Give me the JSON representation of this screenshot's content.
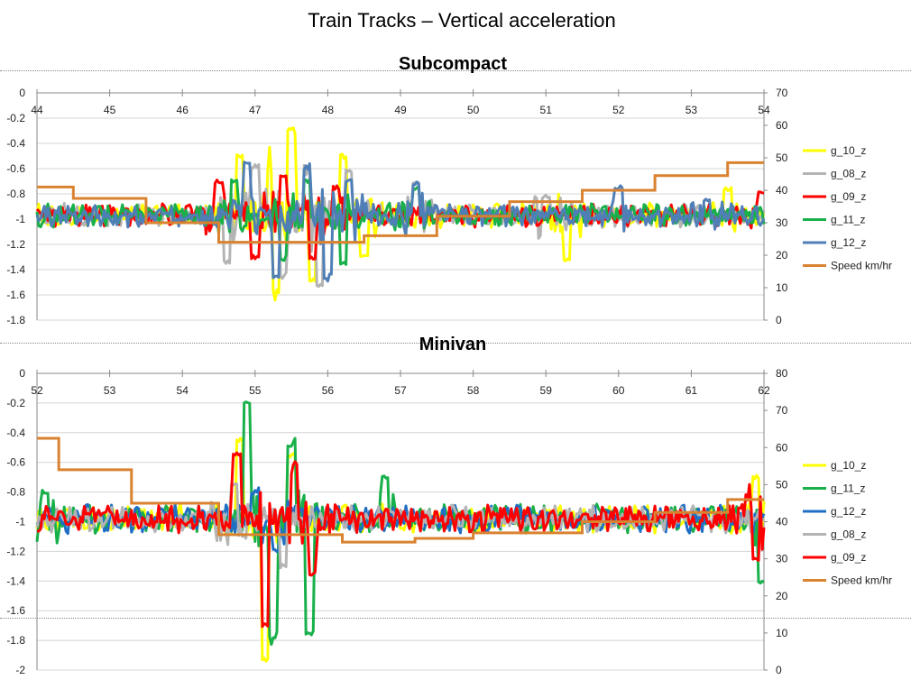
{
  "title": "Train Tracks – Vertical acceleration",
  "colors": {
    "yellow": "#ffff00",
    "gray": "#b4b4b4",
    "red": "#ff0000",
    "green": "#18b04a",
    "blue": "#4f7fb6",
    "blue2": "#1f6fc4",
    "orange": "#d98230"
  },
  "chart_data": [
    {
      "type": "line",
      "title": "Subcompact",
      "xlim": [
        44,
        54
      ],
      "x_ticks": [
        "44",
        "45",
        "46",
        "47",
        "48",
        "49",
        "50",
        "51",
        "52",
        "53",
        "54"
      ],
      "ylim": [
        -1.8,
        0
      ],
      "y_ticks": [
        "0",
        "-0.2",
        "-0.4",
        "-0.6",
        "-0.8",
        "-1",
        "-1.2",
        "-1.4",
        "-1.6",
        "-1.8"
      ],
      "y2lim": [
        0,
        70
      ],
      "y2_ticks": [
        "70",
        "60",
        "50",
        "40",
        "30",
        "20",
        "10",
        "0"
      ],
      "grid": true,
      "legend_position": "right",
      "legend": [
        "g_10_z",
        "g_08_z",
        "g_09_z",
        "g_11_z",
        "g_12_z",
        "Speed km/hr"
      ],
      "series": [
        {
          "name": "g_10_z",
          "color": "#ffff00",
          "axis": "left",
          "base": -0.97,
          "feature_points": [
            [
              46.8,
              -0.5
            ],
            [
              47.2,
              -0.52
            ],
            [
              47.3,
              -1.62
            ],
            [
              47.5,
              -0.3
            ],
            [
              47.8,
              -1.48
            ],
            [
              48.2,
              -0.5
            ],
            [
              48.5,
              -1.3
            ],
            [
              51.3,
              -1.32
            ],
            [
              53.5,
              -0.76
            ]
          ]
        },
        {
          "name": "g_08_z",
          "color": "#b4b4b4",
          "axis": "left",
          "base": -0.97,
          "feature_points": [
            [
              46.6,
              -1.34
            ],
            [
              47.0,
              -0.58
            ],
            [
              47.4,
              -1.45
            ],
            [
              47.7,
              -0.6
            ],
            [
              47.9,
              -1.52
            ],
            [
              48.3,
              -0.62
            ],
            [
              49.2,
              -0.7
            ],
            [
              51.0,
              -0.82
            ]
          ]
        },
        {
          "name": "g_09_z",
          "color": "#ff0000",
          "axis": "left",
          "base": -0.97,
          "feature_points": [
            [
              46.5,
              -0.7
            ],
            [
              47.0,
              -1.3
            ],
            [
              47.4,
              -0.66
            ],
            [
              47.8,
              -1.3
            ],
            [
              48.1,
              -0.75
            ],
            [
              53.95,
              -0.78
            ]
          ]
        },
        {
          "name": "g_11_z",
          "color": "#18b04a",
          "axis": "left",
          "base": -0.97,
          "feature_points": [
            [
              46.7,
              -0.7
            ],
            [
              47.4,
              -1.3
            ],
            [
              47.7,
              -0.7
            ],
            [
              48.2,
              -1.35
            ],
            [
              49.2,
              -0.75
            ]
          ]
        },
        {
          "name": "g_12_z",
          "color": "#4f7fb6",
          "axis": "left",
          "base": -0.97,
          "feature_points": [
            [
              46.9,
              -0.55
            ],
            [
              47.3,
              -1.45
            ],
            [
              47.7,
              -0.6
            ],
            [
              48.0,
              -1.48
            ],
            [
              48.3,
              -0.7
            ],
            [
              49.2,
              -0.72
            ],
            [
              52.0,
              -0.75
            ],
            [
              53.2,
              -0.85
            ]
          ]
        },
        {
          "name": "Speed km/hr",
          "color": "#d98230",
          "axis": "right",
          "style": "step",
          "steps": [
            [
              44.0,
              41
            ],
            [
              44.5,
              37.5
            ],
            [
              45.5,
              30
            ],
            [
              46.5,
              24
            ],
            [
              48.5,
              26
            ],
            [
              49.5,
              32
            ],
            [
              50.5,
              36.5
            ],
            [
              51.5,
              40
            ],
            [
              52.5,
              44.5
            ],
            [
              53.5,
              48.5
            ],
            [
              54.0,
              48.5
            ]
          ]
        }
      ]
    },
    {
      "type": "line",
      "title": "Minivan",
      "xlim": [
        52,
        62
      ],
      "x_ticks": [
        "52",
        "53",
        "54",
        "55",
        "56",
        "57",
        "58",
        "59",
        "60",
        "61",
        "62"
      ],
      "ylim": [
        -2,
        0
      ],
      "y_ticks": [
        "0",
        "-0.2",
        "-0.4",
        "-0.6",
        "-0.8",
        "-1",
        "-1.2",
        "-1.4",
        "-1.6",
        "-1.8",
        "-2"
      ],
      "y2lim": [
        0,
        80
      ],
      "y2_ticks": [
        "80",
        "70",
        "60",
        "50",
        "40",
        "30",
        "20",
        "10",
        "0"
      ],
      "grid": true,
      "legend_position": "right",
      "legend": [
        "g_10_z",
        "g_11_z",
        "g_12_z",
        "g_08_z",
        "g_09_z",
        "Speed km/hr"
      ],
      "series": [
        {
          "name": "g_10_z",
          "color": "#ffff00",
          "axis": "left",
          "base": -0.98,
          "feature_points": [
            [
              54.8,
              -0.45
            ],
            [
              55.15,
              -1.93
            ],
            [
              55.5,
              -0.55
            ],
            [
              61.9,
              -0.7
            ]
          ]
        },
        {
          "name": "g_11_z",
          "color": "#18b04a",
          "axis": "left",
          "base": -0.98,
          "feature_points": [
            [
              52.1,
              -0.8
            ],
            [
              54.9,
              -0.2
            ],
            [
              55.25,
              -1.8
            ],
            [
              55.5,
              -0.5
            ],
            [
              55.75,
              -1.75
            ],
            [
              56.8,
              -0.7
            ],
            [
              61.95,
              -1.4
            ]
          ]
        },
        {
          "name": "g_12_z",
          "color": "#1f6fc4",
          "axis": "left",
          "base": -0.98,
          "feature_points": [
            [
              55.0,
              -0.8
            ],
            [
              55.3,
              -1.2
            ]
          ]
        },
        {
          "name": "g_08_z",
          "color": "#b4b4b4",
          "axis": "left",
          "base": -0.98,
          "feature_points": [
            [
              54.7,
              -0.75
            ],
            [
              55.4,
              -1.3
            ]
          ]
        },
        {
          "name": "g_09_z",
          "color": "#ff0000",
          "axis": "left",
          "base": -0.98,
          "feature_points": [
            [
              54.75,
              -0.55
            ],
            [
              55.15,
              -1.7
            ],
            [
              55.55,
              -0.65
            ],
            [
              55.8,
              -1.35
            ],
            [
              61.8,
              -0.8
            ],
            [
              61.9,
              -1.25
            ]
          ]
        },
        {
          "name": "Speed km/hr",
          "color": "#d98230",
          "axis": "right",
          "style": "step",
          "steps": [
            [
              52.0,
              62.5
            ],
            [
              52.3,
              54
            ],
            [
              53.3,
              45
            ],
            [
              54.5,
              36.5
            ],
            [
              56.2,
              34.5
            ],
            [
              57.2,
              35.5
            ],
            [
              58.0,
              37
            ],
            [
              59.5,
              40
            ],
            [
              60.5,
              42.5
            ],
            [
              61.5,
              46
            ],
            [
              62.0,
              46
            ]
          ]
        }
      ]
    }
  ]
}
